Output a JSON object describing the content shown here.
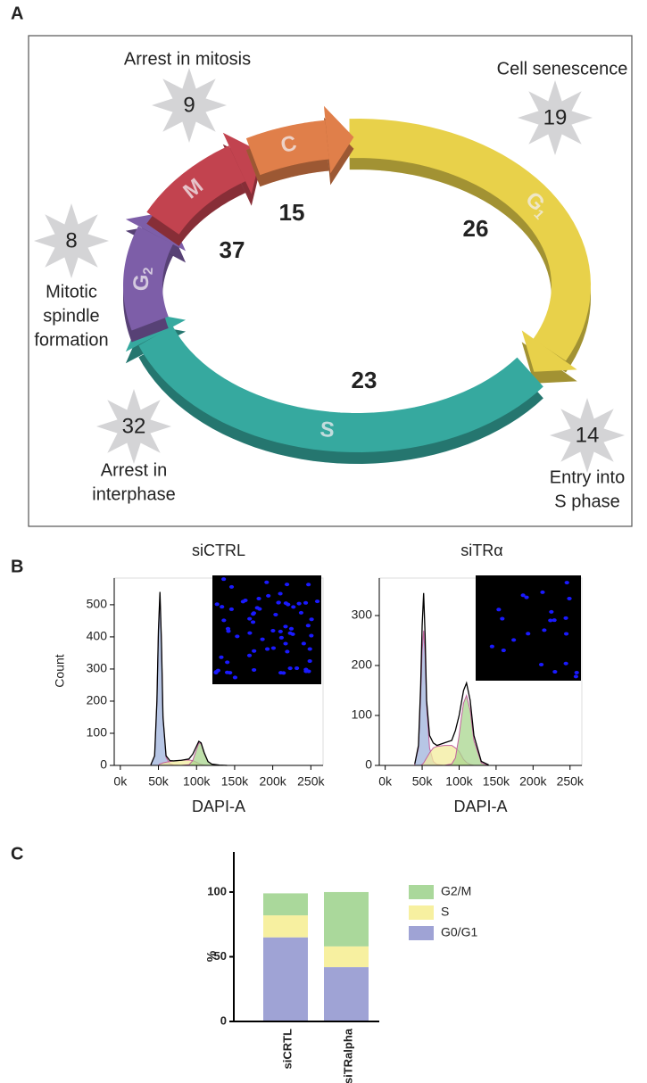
{
  "panels": {
    "a": "A",
    "b": "B",
    "c": "C"
  },
  "diagram": {
    "phases": [
      {
        "label": "G",
        "sub": "1",
        "count": 26,
        "color": "#e8d14a"
      },
      {
        "label": "S",
        "sub": null,
        "count": 23,
        "color": "#36a99f"
      },
      {
        "label": "G",
        "sub": "2",
        "count": null,
        "color": "#7d5ea8"
      },
      {
        "label": "M",
        "sub": null,
        "count": 37,
        "color": "#c2434f"
      },
      {
        "label": "C",
        "sub": null,
        "count": 15,
        "color": "#e07f4a"
      }
    ],
    "stars": [
      {
        "value": 9,
        "lines": [
          "Arrest in mitosis"
        ]
      },
      {
        "value": 19,
        "lines": [
          "Cell senescence"
        ]
      },
      {
        "value": 8,
        "lines": [
          "Mitotic",
          "spindle",
          "formation"
        ]
      },
      {
        "value": 32,
        "lines": [
          "Arrest in",
          "interphase"
        ]
      },
      {
        "value": 14,
        "lines": [
          "Entry into",
          "S phase"
        ]
      }
    ]
  },
  "chart_data": [
    {
      "type": "area",
      "title": "siCTRL",
      "xlabel": "DAPI-A",
      "ylabel": "Count",
      "x": [
        40000,
        45000,
        48000,
        50000,
        52000,
        54000,
        56000,
        60000,
        65000,
        70000,
        80000,
        90000,
        95000,
        100000,
        103000,
        106000,
        110000,
        115000,
        120000,
        130000,
        140000
      ],
      "series": [
        {
          "style": "area",
          "color": "#9fb3dc",
          "values": [
            2,
            30,
            200,
            420,
            530,
            380,
            150,
            25,
            5,
            1,
            0,
            0,
            0,
            0,
            0,
            0,
            0,
            0,
            0,
            0,
            0
          ]
        },
        {
          "style": "area",
          "color": "#f3ec9c",
          "values": [
            0,
            0,
            0,
            0,
            5,
            6,
            8,
            10,
            12,
            14,
            16,
            17,
            15,
            10,
            6,
            3,
            1,
            0,
            0,
            0,
            0
          ]
        },
        {
          "style": "area",
          "color": "#a8d68e",
          "values": [
            0,
            0,
            0,
            0,
            0,
            0,
            0,
            0,
            0,
            0,
            0,
            2,
            15,
            50,
            70,
            67,
            38,
            12,
            4,
            0,
            0
          ]
        },
        {
          "style": "line",
          "color": "#000000",
          "values": [
            2,
            30,
            200,
            420,
            540,
            380,
            150,
            30,
            15,
            14,
            16,
            20,
            35,
            60,
            75,
            70,
            40,
            12,
            4,
            1,
            0
          ]
        }
      ],
      "xlim": [
        -8000,
        266000
      ],
      "xticks": [
        {
          "value": 0,
          "label": "0k"
        },
        {
          "value": 50000,
          "label": "50k"
        },
        {
          "value": 100000,
          "label": "100k"
        },
        {
          "value": 150000,
          "label": "150k"
        },
        {
          "value": 200000,
          "label": "200k"
        },
        {
          "value": 250000,
          "label": "250k"
        }
      ],
      "ylim": [
        0,
        583
      ],
      "yticks": [
        0,
        100,
        200,
        300,
        400,
        500
      ]
    },
    {
      "type": "area",
      "title": "siTRα",
      "xlabel": "DAPI-A",
      "x": [
        40000,
        45000,
        48000,
        50000,
        52000,
        54000,
        56000,
        60000,
        65000,
        70000,
        80000,
        90000,
        95000,
        100000,
        103000,
        106000,
        110000,
        115000,
        120000,
        130000,
        140000
      ],
      "series": [
        {
          "style": "area",
          "color": "#9fb3dc",
          "values": [
            3,
            35,
            140,
            230,
            270,
            220,
            120,
            35,
            8,
            2,
            0,
            0,
            0,
            0,
            0,
            0,
            0,
            0,
            0,
            0,
            0
          ]
        },
        {
          "style": "area",
          "color": "#f3ec9c",
          "values": [
            0,
            0,
            0,
            2,
            5,
            10,
            15,
            25,
            35,
            38,
            40,
            40,
            35,
            28,
            20,
            12,
            6,
            2,
            0,
            0,
            0
          ]
        },
        {
          "style": "area",
          "color": "#a8d68e",
          "values": [
            0,
            0,
            0,
            0,
            0,
            0,
            0,
            0,
            0,
            0,
            0,
            3,
            15,
            60,
            95,
            125,
            140,
            110,
            50,
            5,
            0
          ]
        },
        {
          "style": "line",
          "color": "#000000",
          "values": [
            3,
            40,
            160,
            280,
            345,
            260,
            130,
            60,
            45,
            40,
            45,
            50,
            70,
            100,
            125,
            150,
            165,
            130,
            60,
            8,
            1
          ]
        }
      ],
      "xlim": [
        -8000,
        266000
      ],
      "xticks": [
        {
          "value": 0,
          "label": "0k"
        },
        {
          "value": 50000,
          "label": "50k"
        },
        {
          "value": 100000,
          "label": "100k"
        },
        {
          "value": 150000,
          "label": "150k"
        },
        {
          "value": 200000,
          "label": "200k"
        },
        {
          "value": 250000,
          "label": "250k"
        }
      ],
      "ylim": [
        0,
        375
      ],
      "yticks": [
        0,
        100,
        200,
        300
      ]
    },
    {
      "type": "bar",
      "stacked": true,
      "ylabel": "%",
      "categories": [
        "siCRTL",
        "siTRalpha"
      ],
      "series": [
        {
          "name": "G0/G1",
          "color": "#9fa3d5",
          "values": [
            65,
            42
          ]
        },
        {
          "name": "S",
          "color": "#f7f0a0",
          "values": [
            17,
            16
          ]
        },
        {
          "name": "G2/M",
          "color": "#aad89b",
          "values": [
            17,
            42
          ]
        }
      ],
      "ylim": [
        0,
        131
      ],
      "yticks": [
        0,
        50,
        100
      ]
    }
  ]
}
